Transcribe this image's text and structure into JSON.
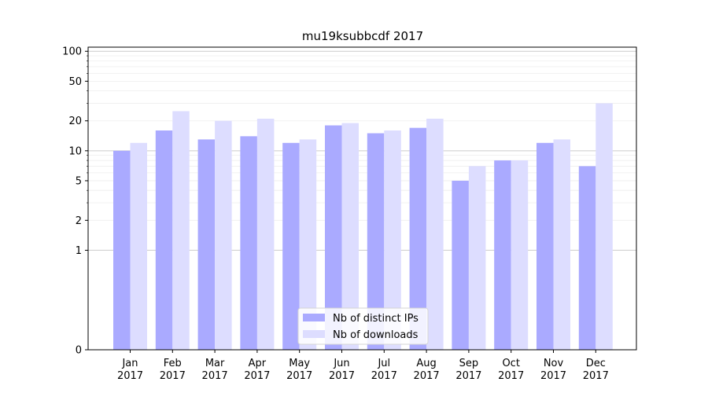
{
  "chart_data": {
    "type": "bar",
    "title": "mu19ksubbcdf 2017",
    "xlabel": "",
    "ylabel": "",
    "y_scale": "symlog",
    "y_ticks": [
      0,
      1,
      2,
      5,
      10,
      20,
      50,
      100
    ],
    "ylim": [
      0,
      110
    ],
    "grid": true,
    "legend_position": "bottom-center",
    "categories": [
      [
        "Jan",
        "2017"
      ],
      [
        "Feb",
        "2017"
      ],
      [
        "Mar",
        "2017"
      ],
      [
        "Apr",
        "2017"
      ],
      [
        "May",
        "2017"
      ],
      [
        "Jun",
        "2017"
      ],
      [
        "Jul",
        "2017"
      ],
      [
        "Aug",
        "2017"
      ],
      [
        "Sep",
        "2017"
      ],
      [
        "Oct",
        "2017"
      ],
      [
        "Nov",
        "2017"
      ],
      [
        "Dec",
        "2017"
      ]
    ],
    "series": [
      {
        "name": "Nb of distinct IPs",
        "color": "#aaaaff",
        "values": [
          10,
          16,
          13,
          14,
          12,
          18,
          15,
          17,
          5,
          8,
          12,
          7
        ]
      },
      {
        "name": "Nb of downloads",
        "color": "#ddddff",
        "values": [
          12,
          25,
          20,
          21,
          13,
          19,
          16,
          21,
          7,
          8,
          13,
          30
        ]
      }
    ]
  }
}
